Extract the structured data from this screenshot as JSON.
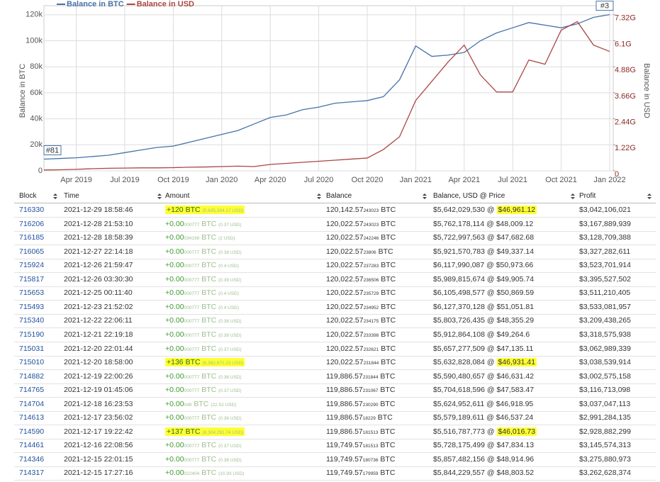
{
  "chart_data": {
    "type": "line",
    "legend": "top-left",
    "grid": true,
    "ylabel": "Balance in BTC",
    "y2label": "Balance in USD",
    "annotations": [
      "#81",
      "#3"
    ],
    "x": [
      "2019-02",
      "2019-03",
      "2019-04",
      "2019-05",
      "2019-06",
      "2019-07",
      "2019-08",
      "2019-09",
      "2019-10",
      "2019-11",
      "2019-12",
      "2020-01",
      "2020-02",
      "2020-03",
      "2020-04",
      "2020-05",
      "2020-06",
      "2020-07",
      "2020-08",
      "2020-09",
      "2020-10",
      "2020-11",
      "2020-12",
      "2021-01",
      "2021-02",
      "2021-03",
      "2021-04",
      "2021-05",
      "2021-06",
      "2021-07",
      "2021-08",
      "2021-09",
      "2021-10",
      "2021-11",
      "2021-12",
      "2022-01"
    ],
    "xticks": [
      {
        "value": "2019-04",
        "label": "Apr 2019"
      },
      {
        "value": "2019-07",
        "label": "Jul 2019"
      },
      {
        "value": "2019-10",
        "label": "Oct 2019"
      },
      {
        "value": "2020-01",
        "label": "Jan 2020"
      },
      {
        "value": "2020-04",
        "label": "Apr 2020"
      },
      {
        "value": "2020-07",
        "label": "Jul 2020"
      },
      {
        "value": "2020-10",
        "label": "Oct 2020"
      },
      {
        "value": "2021-01",
        "label": "Jan 2021"
      },
      {
        "value": "2021-04",
        "label": "Apr 2021"
      },
      {
        "value": "2021-07",
        "label": "Jul 2021"
      },
      {
        "value": "2021-10",
        "label": "Oct 2021"
      },
      {
        "value": "2022-01",
        "label": "Jan 2022"
      }
    ],
    "ylim": [
      0,
      127000
    ],
    "yticks": [
      0,
      {
        "value": 20000,
        "label": "20k"
      },
      {
        "value": 40000,
        "label": "40k"
      },
      {
        "value": 60000,
        "label": "60k"
      },
      {
        "value": 80000,
        "label": "80k"
      },
      {
        "value": 100000,
        "label": "100k"
      },
      {
        "value": 120000,
        "label": "120k"
      }
    ],
    "y2lim": [
      0,
      7747000000
    ],
    "y2ticks": [
      0,
      {
        "value": 1220000000,
        "label": "1.22G"
      },
      {
        "value": 2440000000,
        "label": "2.44G"
      },
      {
        "value": 3660000000,
        "label": "3.66G"
      },
      {
        "value": 4880000000,
        "label": "4.88G"
      },
      {
        "value": 6100000000,
        "label": "6.1G"
      },
      {
        "value": 7320000000,
        "label": "7.32G"
      }
    ],
    "series": [
      {
        "name": "Balance in BTC",
        "color": "#4572a7",
        "values": [
          9000,
          9500,
          10000,
          11000,
          12000,
          14000,
          16000,
          18000,
          19000,
          22000,
          25000,
          28000,
          31000,
          36000,
          41000,
          43000,
          47000,
          49000,
          52000,
          53000,
          54000,
          57000,
          70000,
          96000,
          88000,
          89000,
          91000,
          100000,
          106000,
          110000,
          114000,
          112000,
          110000,
          113000,
          118000,
          120142
        ]
      },
      {
        "name": "Balance in USD",
        "color": "#aa4643",
        "axis": "y2",
        "values": [
          40000000,
          50000000,
          70000000,
          100000000,
          120000000,
          130000000,
          140000000,
          140000000,
          150000000,
          170000000,
          180000000,
          200000000,
          220000000,
          200000000,
          300000000,
          350000000,
          400000000,
          450000000,
          500000000,
          550000000,
          600000000,
          1000000000,
          1600000000,
          3300000000,
          4200000000,
          5100000000,
          5900000000,
          4500000000,
          3700000000,
          3700000000,
          5200000000,
          5000000000,
          6600000000,
          7000000000,
          5900000000,
          5600000000
        ]
      }
    ]
  },
  "table": {
    "headers": [
      "Block",
      "Time",
      "Amount",
      "Balance",
      "Balance, USD @ Price",
      "Profit"
    ],
    "rows": [
      {
        "block": "716330",
        "time": "2021-12-29 18:58:46",
        "amount": {
          "text": "+120 BTC",
          "usd": "(5,635,334.17 USD)",
          "highlight": true
        },
        "balance": {
          "main": "120,142.57",
          "digits": "243023",
          "unit": "BTC"
        },
        "usd": "$5,642,029,530 @",
        "price": "$46,961.12",
        "price_highlight": true,
        "profit": "$3,042,106,021"
      },
      {
        "block": "716206",
        "time": "2021-12-28 21:53:10",
        "amount": {
          "text": "+0.00",
          "digits": "000777",
          "unit": "BTC",
          "usd": "(0.37 USD)"
        },
        "balance": {
          "main": "120,022.57",
          "digits": "243023",
          "unit": "BTC"
        },
        "usd": "$5,762,178,114 @",
        "price": "$48,009.12",
        "profit": "$3,167,889,939"
      },
      {
        "block": "716185",
        "time": "2021-12-28 18:58:39",
        "amount": {
          "text": "+0.00",
          "digits": "034198",
          "unit": "BTC",
          "usd": "(2 USD)"
        },
        "balance": {
          "main": "120,022.57",
          "digits": "242246",
          "unit": "BTC"
        },
        "usd": "$5,722,997,563 @",
        "price": "$47,682.68",
        "profit": "$3,128,709,388"
      },
      {
        "block": "716065",
        "time": "2021-12-27 22:14:18",
        "amount": {
          "text": "+0.00",
          "digits": "000777",
          "unit": "BTC",
          "usd": "(0.38 USD)"
        },
        "balance": {
          "main": "120,022.57",
          "digits": "23806",
          "unit": "BTC"
        },
        "usd": "$5,921,570,783 @",
        "price": "$49,337.14",
        "profit": "$3,327,282,611"
      },
      {
        "block": "715924",
        "time": "2021-12-26 21:59:47",
        "amount": {
          "text": "+0.00",
          "digits": "000777",
          "unit": "BTC",
          "usd": "(0.4 USD)"
        },
        "balance": {
          "main": "120,022.57",
          "digits": "237283",
          "unit": "BTC"
        },
        "usd": "$6,117,990,087 @",
        "price": "$50,973.66",
        "profit": "$3,523,701,914"
      },
      {
        "block": "715817",
        "time": "2021-12-26 03:30:30",
        "amount": {
          "text": "+0.00",
          "digits": "000777",
          "unit": "BTC",
          "usd": "(0.39 USD)"
        },
        "balance": {
          "main": "120,022.57",
          "digits": "236506",
          "unit": "BTC"
        },
        "usd": "$5,989,815,674 @",
        "price": "$49,905.74",
        "profit": "$3,395,527,502"
      },
      {
        "block": "715653",
        "time": "2021-12-25 00:11:40",
        "amount": {
          "text": "+0.00",
          "digits": "000777",
          "unit": "BTC",
          "usd": "(0.4 USD)"
        },
        "balance": {
          "main": "120,022.57",
          "digits": "235729",
          "unit": "BTC"
        },
        "usd": "$6,105,498,577 @",
        "price": "$50,869.59",
        "profit": "$3,511,210,405"
      },
      {
        "block": "715493",
        "time": "2021-12-23 21:52:02",
        "amount": {
          "text": "+0.00",
          "digits": "000777",
          "unit": "BTC",
          "usd": "(0.4 USD)"
        },
        "balance": {
          "main": "120,022.57",
          "digits": "234952",
          "unit": "BTC"
        },
        "usd": "$6,127,370,128 @",
        "price": "$51,051.81",
        "profit": "$3,533,081,957"
      },
      {
        "block": "715340",
        "time": "2021-12-22 22:06:11",
        "amount": {
          "text": "+0.00",
          "digits": "000777",
          "unit": "BTC",
          "usd": "(0.38 USD)"
        },
        "balance": {
          "main": "120,022.57",
          "digits": "234175",
          "unit": "BTC"
        },
        "usd": "$5,803,726,435 @",
        "price": "$48,355.29",
        "profit": "$3,209,438,265"
      },
      {
        "block": "715190",
        "time": "2021-12-21 22:19:18",
        "amount": {
          "text": "+0.00",
          "digits": "000777",
          "unit": "BTC",
          "usd": "(0.38 USD)"
        },
        "balance": {
          "main": "120,022.57",
          "digits": "233398",
          "unit": "BTC"
        },
        "usd": "$5,912,864,108 @",
        "price": "$49,264.6",
        "profit": "$3,318,575,938"
      },
      {
        "block": "715031",
        "time": "2021-12-20 22:01:44",
        "amount": {
          "text": "+0.00",
          "digits": "000777",
          "unit": "BTC",
          "usd": "(0.37 USD)"
        },
        "balance": {
          "main": "120,022.57",
          "digits": "232621",
          "unit": "BTC"
        },
        "usd": "$5,657,277,509 @",
        "price": "$47,135.11",
        "profit": "$3,062,989,339"
      },
      {
        "block": "715010",
        "time": "2021-12-20 18:58:00",
        "amount": {
          "text": "+136 BTC",
          "usd": "(6,382,671.23 USD)",
          "highlight": true
        },
        "balance": {
          "main": "120,022.57",
          "digits": "231844",
          "unit": "BTC"
        },
        "usd": "$5,632,828,084 @",
        "price": "$46,931.41",
        "price_highlight": true,
        "profit": "$3,038,539,914"
      },
      {
        "block": "714882",
        "time": "2021-12-19 22:00:26",
        "amount": {
          "text": "+0.00",
          "digits": "000777",
          "unit": "BTC",
          "usd": "(0.36 USD)"
        },
        "balance": {
          "main": "119,886.57",
          "digits": "231844",
          "unit": "BTC"
        },
        "usd": "$5,590,480,657 @",
        "price": "$46,631.42",
        "profit": "$3,002,575,158"
      },
      {
        "block": "714765",
        "time": "2021-12-19 01:45:06",
        "amount": {
          "text": "+0.00",
          "digits": "000777",
          "unit": "BTC",
          "usd": "(0.37 USD)"
        },
        "balance": {
          "main": "119,886.57",
          "digits": "231067",
          "unit": "BTC"
        },
        "usd": "$5,704,618,596 @",
        "price": "$47,583.47",
        "profit": "$3,116,713,098"
      },
      {
        "block": "714704",
        "time": "2021-12-18 16:23:53",
        "amount": {
          "text": "+0.00",
          "digits": "048",
          "unit": "BTC",
          "usd": "(22.52 USD)"
        },
        "balance": {
          "main": "119,886.57",
          "digits": "230290",
          "unit": "BTC"
        },
        "usd": "$5,624,952,611 @",
        "price": "$46,918.95",
        "profit": "$3,037,047,113"
      },
      {
        "block": "714613",
        "time": "2021-12-17 23:56:02",
        "amount": {
          "text": "+0.00",
          "digits": "000777",
          "unit": "BTC",
          "usd": "(0.36 USD)"
        },
        "balance": {
          "main": "119,886.57",
          "digits": "18229",
          "unit": "BTC"
        },
        "usd": "$5,579,189,611 @",
        "price": "$46,537.24",
        "profit": "$2,991,284,135"
      },
      {
        "block": "714590",
        "time": "2021-12-17 19:22:42",
        "amount": {
          "text": "+137 BTC",
          "usd": "(6,304,291.74 USD)",
          "highlight": true
        },
        "balance": {
          "main": "119,886.57",
          "digits": "181513",
          "unit": "BTC"
        },
        "usd": "$5,516,787,773 @",
        "price": "$46,016.73",
        "price_highlight": true,
        "profit": "$2,928,882,299"
      },
      {
        "block": "714461",
        "time": "2021-12-16 22:08:56",
        "amount": {
          "text": "+0.00",
          "digits": "000777",
          "unit": "BTC",
          "usd": "(0.37 USD)"
        },
        "balance": {
          "main": "119,749.57",
          "digits": "181513",
          "unit": "BTC"
        },
        "usd": "$5,728,175,499 @",
        "price": "$47,834.13",
        "profit": "$3,145,574,313"
      },
      {
        "block": "714346",
        "time": "2021-12-15 22:01:15",
        "amount": {
          "text": "+0.00",
          "digits": "000777",
          "unit": "BTC",
          "usd": "(0.38 USD)"
        },
        "balance": {
          "main": "119,749.57",
          "digits": "180736",
          "unit": "BTC"
        },
        "usd": "$5,857,482,156 @",
        "price": "$48,914.96",
        "profit": "$3,275,880,973"
      },
      {
        "block": "714317",
        "time": "2021-12-15 17:27:16",
        "amount": {
          "text": "+0.00",
          "digits": "022404",
          "unit": "BTC",
          "usd": "(10.93 USD)"
        },
        "balance": {
          "main": "119,749.57",
          "digits": "179959",
          "unit": "BTC"
        },
        "usd": "$5,844,229,557 @",
        "price": "$48,803.52",
        "profit": "$3,262,628,374"
      }
    ]
  }
}
